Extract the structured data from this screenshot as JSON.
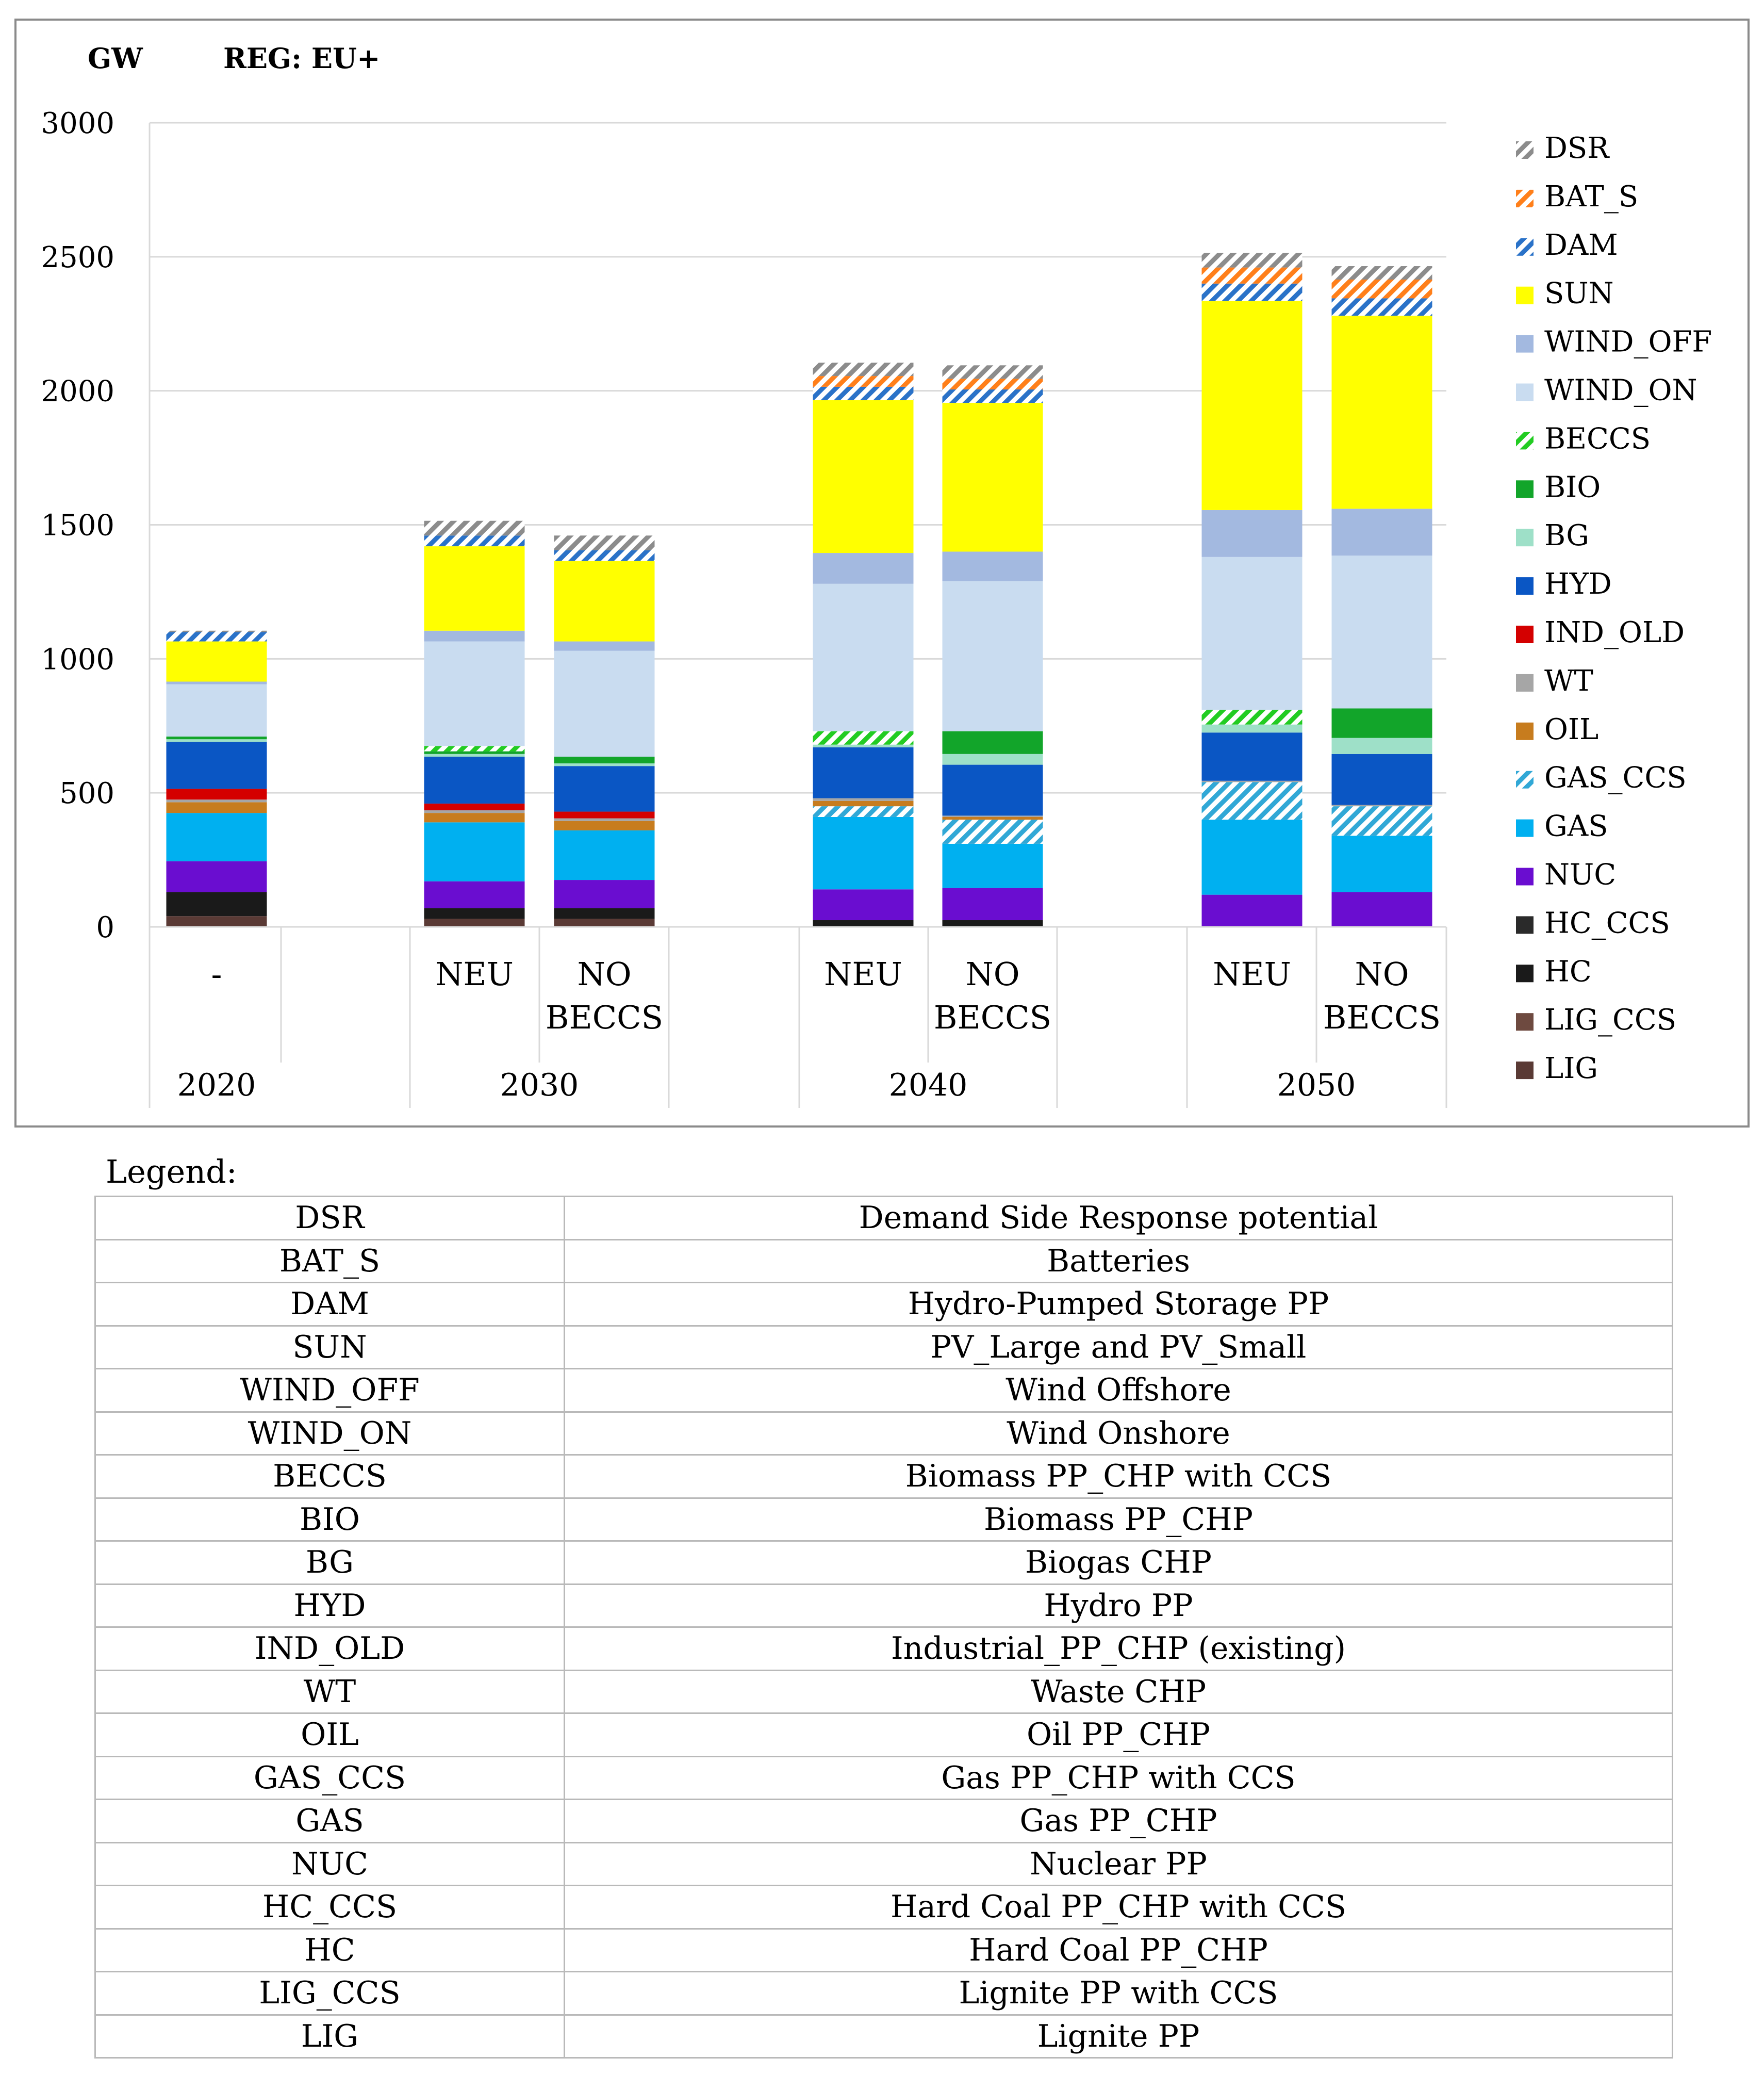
{
  "chart_data": {
    "type": "bar",
    "stacked": true,
    "unit_label": "GW",
    "region_label": "REG: EU+",
    "ylim": [
      0,
      3000
    ],
    "yticks": [
      0,
      500,
      1000,
      1500,
      2000,
      2500,
      3000
    ],
    "grid": true,
    "legend_position": "right",
    "groups": [
      {
        "year": "2020",
        "bars": [
          {
            "label": "-"
          }
        ]
      },
      {
        "year": "2030",
        "bars": [
          {
            "label": "NEU"
          },
          {
            "label": "NO BECCS"
          }
        ]
      },
      {
        "year": "2040",
        "bars": [
          {
            "label": "NEU"
          },
          {
            "label": "NO BECCS"
          }
        ]
      },
      {
        "year": "2050",
        "bars": [
          {
            "label": "NEU"
          },
          {
            "label": "NO BECCS"
          }
        ]
      }
    ],
    "bar_order": [
      "2020 -",
      "2030 NEU",
      "2030 NO BECCS",
      "2040 NEU",
      "2040 NO BECCS",
      "2050 NEU",
      "2050 NO BECCS"
    ],
    "series": [
      {
        "name": "LIG",
        "color": "#5a3a35",
        "pattern": "solid",
        "values": [
          40,
          30,
          30,
          0,
          0,
          0,
          0
        ]
      },
      {
        "name": "LIG_CCS",
        "color": "#6e4a40",
        "pattern": "solid",
        "values": [
          0,
          0,
          0,
          0,
          0,
          0,
          0
        ]
      },
      {
        "name": "HC",
        "color": "#1a1a1a",
        "pattern": "solid",
        "values": [
          90,
          40,
          40,
          25,
          25,
          0,
          0
        ]
      },
      {
        "name": "HC_CCS",
        "color": "#2a2a2a",
        "pattern": "solid",
        "values": [
          0,
          0,
          0,
          0,
          0,
          0,
          0
        ]
      },
      {
        "name": "NUC",
        "color": "#6a0dd0",
        "pattern": "solid",
        "values": [
          115,
          100,
          105,
          115,
          120,
          120,
          130
        ]
      },
      {
        "name": "GAS",
        "color": "#00b0f0",
        "pattern": "solid",
        "values": [
          180,
          220,
          185,
          270,
          165,
          280,
          210
        ]
      },
      {
        "name": "GAS_CCS",
        "color": "#31a8d6",
        "pattern": "hatch",
        "values": [
          0,
          0,
          0,
          40,
          90,
          140,
          110
        ]
      },
      {
        "name": "OIL",
        "color": "#c77c1e",
        "pattern": "solid",
        "values": [
          40,
          35,
          35,
          20,
          10,
          0,
          0
        ]
      },
      {
        "name": "WT",
        "color": "#a6a6a6",
        "pattern": "solid",
        "values": [
          10,
          10,
          10,
          10,
          5,
          5,
          5
        ]
      },
      {
        "name": "IND_OLD",
        "color": "#d40000",
        "pattern": "solid",
        "values": [
          40,
          25,
          25,
          0,
          0,
          0,
          0
        ]
      },
      {
        "name": "HYD",
        "color": "#0a56c4",
        "pattern": "solid",
        "values": [
          175,
          175,
          170,
          190,
          190,
          180,
          190
        ]
      },
      {
        "name": "BG",
        "color": "#9ee0c8",
        "pattern": "solid",
        "values": [
          10,
          10,
          10,
          10,
          40,
          30,
          60
        ]
      },
      {
        "name": "BIO",
        "color": "#12a52a",
        "pattern": "solid",
        "values": [
          10,
          10,
          25,
          0,
          85,
          0,
          110
        ]
      },
      {
        "name": "BECCS",
        "color": "#22cc22",
        "pattern": "hatch",
        "values": [
          0,
          20,
          0,
          50,
          0,
          55,
          0
        ]
      },
      {
        "name": "WIND_ON",
        "color": "#c9dcf0",
        "pattern": "solid",
        "values": [
          195,
          390,
          395,
          550,
          560,
          570,
          570
        ]
      },
      {
        "name": "WIND_OFF",
        "color": "#a3b9e0",
        "pattern": "solid",
        "values": [
          10,
          40,
          35,
          115,
          110,
          175,
          175
        ]
      },
      {
        "name": "SUN",
        "color": "#ffff00",
        "pattern": "solid",
        "values": [
          150,
          315,
          300,
          570,
          555,
          780,
          720
        ]
      },
      {
        "name": "DAM",
        "color": "#2a72c8",
        "pattern": "hatch",
        "values": [
          35,
          40,
          40,
          50,
          50,
          65,
          65
        ]
      },
      {
        "name": "BAT_S",
        "color": "#ff7f1a",
        "pattern": "hatch",
        "values": [
          0,
          0,
          0,
          40,
          40,
          60,
          70
        ]
      },
      {
        "name": "DSR",
        "color": "#8c8c8c",
        "pattern": "hatch",
        "values": [
          5,
          55,
          55,
          50,
          50,
          55,
          50
        ]
      }
    ],
    "legend_entries": [
      "DSR",
      "BAT_S",
      "DAM",
      "SUN",
      "WIND_OFF",
      "WIND_ON",
      "BECCS",
      "BIO",
      "BG",
      "HYD",
      "IND_OLD",
      "WT",
      "OIL",
      "GAS_CCS",
      "GAS",
      "NUC",
      "HC_CCS",
      "HC",
      "LIG_CCS",
      "LIG"
    ]
  },
  "legend_table": {
    "caption": "Legend:",
    "rows": [
      {
        "code": "DSR",
        "desc": "Demand Side Response potential"
      },
      {
        "code": "BAT_S",
        "desc": "Batteries"
      },
      {
        "code": "DAM",
        "desc": "Hydro-Pumped Storage PP"
      },
      {
        "code": "SUN",
        "desc": "PV_Large and PV_Small"
      },
      {
        "code": "WIND_OFF",
        "desc": "Wind Offshore"
      },
      {
        "code": "WIND_ON",
        "desc": "Wind Onshore"
      },
      {
        "code": "BECCS",
        "desc": "Biomass PP_CHP with CCS"
      },
      {
        "code": "BIO",
        "desc": "Biomass PP_CHP"
      },
      {
        "code": "BG",
        "desc": "Biogas CHP"
      },
      {
        "code": "HYD",
        "desc": "Hydro PP"
      },
      {
        "code": "IND_OLD",
        "desc": "Industrial_PP_CHP (existing)"
      },
      {
        "code": "WT",
        "desc": "Waste CHP"
      },
      {
        "code": "OIL",
        "desc": "Oil PP_CHP"
      },
      {
        "code": "GAS_CCS",
        "desc": "Gas PP_CHP with CCS"
      },
      {
        "code": "GAS",
        "desc": "Gas PP_CHP"
      },
      {
        "code": "NUC",
        "desc": "Nuclear PP"
      },
      {
        "code": "HC_CCS",
        "desc": "Hard Coal PP_CHP with CCS"
      },
      {
        "code": "HC",
        "desc": "Hard Coal PP_CHP"
      },
      {
        "code": "LIG_CCS",
        "desc": "Lignite PP with CCS"
      },
      {
        "code": "LIG",
        "desc": "Lignite PP"
      }
    ]
  }
}
